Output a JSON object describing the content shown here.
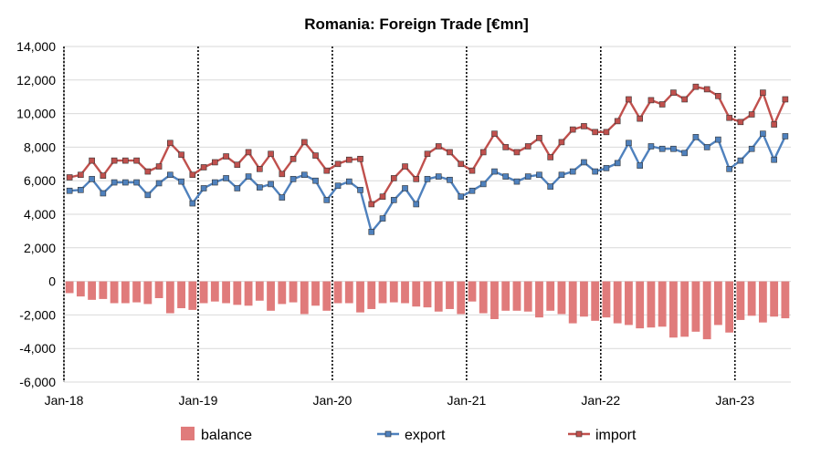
{
  "chart_data": {
    "type": "bar+line",
    "title": "Romania: Foreign Trade [€mn]",
    "xlabel": "",
    "ylabel": "",
    "ylim": [
      -6000,
      14000
    ],
    "y_ticks": [
      "-6,000",
      "-4,000",
      "-2,000",
      "0",
      "2,000",
      "4,000",
      "6,000",
      "8,000",
      "10,000",
      "12,000",
      "14,000"
    ],
    "x_tick_labels": [
      "Jan-18",
      "Jan-19",
      "Jan-20",
      "Jan-21",
      "Jan-22",
      "Jan-23"
    ],
    "x_start": "2018-01",
    "legend_placement": "bottom",
    "grid": "horizontal",
    "series": [
      {
        "name": "balance",
        "kind": "bar",
        "color": "#e07b7b",
        "values": [
          -700,
          -900,
          -1100,
          -1050,
          -1300,
          -1300,
          -1250,
          -1350,
          -1000,
          -1900,
          -1600,
          -1700,
          -1300,
          -1200,
          -1300,
          -1400,
          -1450,
          -1150,
          -1750,
          -1350,
          -1250,
          -1950,
          -1450,
          -1750,
          -1300,
          -1300,
          -1850,
          -1650,
          -1300,
          -1250,
          -1300,
          -1500,
          -1550,
          -1800,
          -1650,
          -1950,
          -1200,
          -1900,
          -2250,
          -1750,
          -1750,
          -1800,
          -2150,
          -1750,
          -1950,
          -2500,
          -2100,
          -2350,
          -2150,
          -2500,
          -2600,
          -2800,
          -2750,
          -2700,
          -3350,
          -3300,
          -3000,
          -3450,
          -2600,
          -3050,
          -2300,
          -2050,
          -2450,
          -2100,
          -2200
        ]
      },
      {
        "name": "export",
        "kind": "line",
        "color": "#4f81bd",
        "values": [
          5400,
          5450,
          6100,
          5250,
          5900,
          5900,
          5900,
          5150,
          5850,
          6350,
          5950,
          4650,
          5550,
          5900,
          6150,
          5550,
          6250,
          5600,
          5800,
          5000,
          6100,
          6350,
          6000,
          4850,
          5700,
          5950,
          5450,
          2950,
          3750,
          4850,
          5550,
          4600,
          6100,
          6250,
          6050,
          5050,
          5400,
          5800,
          6550,
          6250,
          5950,
          6250,
          6350,
          5650,
          6350,
          6550,
          7100,
          6550,
          6750,
          7050,
          8250,
          6900,
          8050,
          7900,
          7900,
          7650,
          8600,
          8000,
          8450,
          6700,
          7200,
          7900,
          8800,
          7250,
          8650
        ]
      },
      {
        "name": "import",
        "kind": "line",
        "color": "#c0504d",
        "values": [
          6200,
          6350,
          7200,
          6300,
          7200,
          7200,
          7200,
          6550,
          6850,
          8250,
          7550,
          6350,
          6800,
          7100,
          7450,
          6950,
          7700,
          6700,
          7600,
          6400,
          7300,
          8300,
          7500,
          6600,
          7000,
          7250,
          7300,
          4600,
          5050,
          6150,
          6850,
          6100,
          7600,
          8050,
          7700,
          7000,
          6600,
          7700,
          8800,
          8000,
          7700,
          8050,
          8550,
          7400,
          8300,
          9050,
          9250,
          8900,
          8900,
          9550,
          10850,
          9700,
          10800,
          10550,
          11250,
          10850,
          11600,
          11450,
          11050,
          9750,
          9500,
          9950,
          11250,
          9350,
          10850
        ]
      }
    ]
  }
}
